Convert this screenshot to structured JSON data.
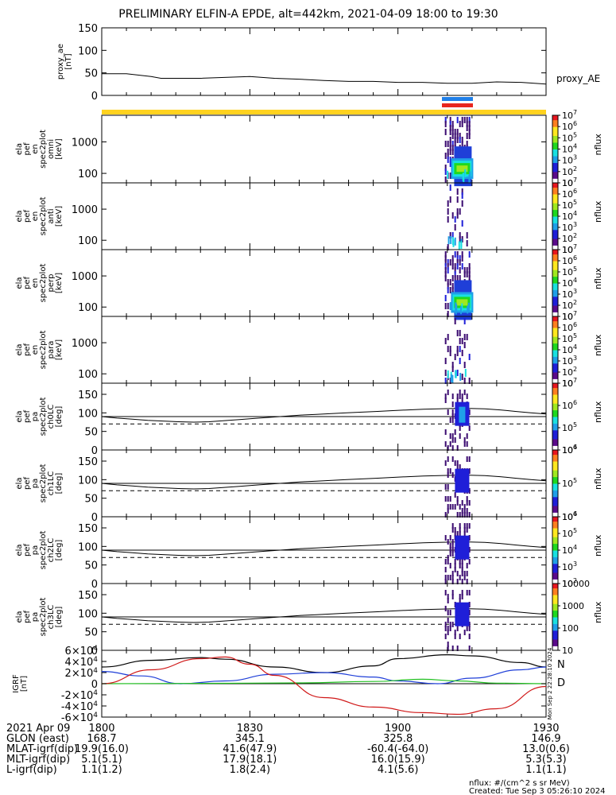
{
  "title": "PRELIMINARY ELFIN-A EPDE, alt=442km, 2021-04-09 18:00 to 19:30",
  "colors": {
    "axis": "#000000",
    "bar_yellow": "#ffd21f",
    "bar_blue": "#1f7fe8",
    "bar_red": "#e8261f",
    "grf_black": "#000000",
    "grf_blue": "#1f3fd8",
    "grf_green": "#22c022",
    "grf_red": "#d01818",
    "colorbar_stops": [
      "#ffffff",
      "#5a0b8a",
      "#1f1fd8",
      "#1f9fe8",
      "#19e0e0",
      "#1fd81f",
      "#a0e81f",
      "#ffe81f",
      "#ff7f1f",
      "#e8161f"
    ]
  },
  "panels": [
    {
      "id": "proxy_ae",
      "ylabel": [
        "proxy_ae",
        "[nT]"
      ],
      "right_label": "proxy_AE"
    },
    {
      "id": "en_omni",
      "ylabel": [
        "ela",
        "pef",
        "en",
        "spec2plot",
        "omni",
        "[keV]"
      ],
      "zlabel": "nflux"
    },
    {
      "id": "en_anti",
      "ylabel": [
        "ela",
        "pef",
        "en",
        "spec2plot",
        "anti",
        "[keV]"
      ],
      "zlabel": "nflux"
    },
    {
      "id": "en_perp",
      "ylabel": [
        "ela",
        "pef",
        "en",
        "spec2plot",
        "perp",
        "[keV]"
      ],
      "zlabel": "nflux"
    },
    {
      "id": "en_para",
      "ylabel": [
        "ela",
        "pef",
        "en",
        "spec2plot",
        "para",
        "[keV]"
      ],
      "zlabel": "nflux"
    },
    {
      "id": "pa_ch0",
      "ylabel": [
        "ela",
        "pef",
        "pa",
        "spec2plot",
        "ch0LC",
        "[deg]"
      ],
      "zlabel": "nflux"
    },
    {
      "id": "pa_ch1",
      "ylabel": [
        "ela",
        "pef",
        "pa",
        "spec2plot",
        "ch1LC",
        "[deg]"
      ],
      "zlabel": "nflux"
    },
    {
      "id": "pa_ch2",
      "ylabel": [
        "ela",
        "pef",
        "pa",
        "spec2plot",
        "ch2LC",
        "[deg]"
      ],
      "zlabel": "nflux"
    },
    {
      "id": "pa_ch3",
      "ylabel": [
        "ela",
        "pef",
        "pa",
        "spec2plot",
        "ch3LC",
        "[deg]"
      ],
      "zlabel": "nflux"
    },
    {
      "id": "grf",
      "ylabel": [
        "IGRF",
        "[nT]"
      ],
      "legend": [
        "N",
        "D"
      ],
      "side_text": "Mon Sep  2 22:28:10 2024"
    }
  ],
  "footer": {
    "rows": [
      {
        "label": "2021 Apr 09",
        "values": [
          "1800",
          "1830",
          "1900",
          "1930"
        ]
      },
      {
        "label": "GLON (east)",
        "values": [
          "168.7",
          "345.1",
          "325.8",
          "146.9"
        ]
      },
      {
        "label": "MLAT-igrf(dip)",
        "values": [
          "19.9(16.0)",
          "41.6(47.9)",
          "-60.4(-64.0)",
          "13.0(0.6)"
        ]
      },
      {
        "label": "MLT-igrf(dip)",
        "values": [
          "5.1(5.1)",
          "17.9(18.1)",
          "16.0(15.9)",
          "5.3(5.3)"
        ]
      },
      {
        "label": "L-igrf(dip)",
        "values": [
          "1.1(1.2)",
          "1.8(2.4)",
          "4.1(5.6)",
          "1.1(1.1)"
        ]
      }
    ],
    "units_note": "nflux: #/(cm^2 s sr MeV)",
    "created_note": "Created: Tue Sep  3 05:26:10 2024"
  },
  "chart_data": [
    {
      "type": "line",
      "panel": "proxy_ae",
      "x_unit": "minutes since 18:00",
      "xlim": [
        0,
        90
      ],
      "ylim": [
        0,
        150
      ],
      "yticks": [
        "0",
        "50",
        "100",
        "150"
      ],
      "series": [
        {
          "name": "proxy_AE",
          "x": [
            0,
            5,
            10,
            12,
            14,
            20,
            30,
            35,
            40,
            45,
            50,
            55,
            60,
            65,
            70,
            75,
            80,
            85,
            90
          ],
          "y": [
            48,
            48,
            42,
            38,
            38,
            38,
            42,
            38,
            36,
            33,
            31,
            31,
            29,
            29,
            27,
            27,
            30,
            29,
            25
          ]
        }
      ]
    },
    {
      "type": "heatmap",
      "panel": "en_omni",
      "ylim_log_keV": [
        50,
        7000
      ],
      "yticks": [
        "100",
        "1000"
      ],
      "zlim": [
        10,
        10000000
      ],
      "colorbar_ticks": [
        "10",
        "10^2",
        "10^3",
        "10^4",
        "10^5",
        "10^6",
        "10^7"
      ],
      "activity_x_range": [
        69.5,
        74.5
      ],
      "peak": {
        "x": 73,
        "y_keV": 200,
        "z": 10000
      }
    },
    {
      "type": "heatmap",
      "panel": "en_anti",
      "ylim_log_keV": [
        50,
        7000
      ],
      "yticks": [
        "100",
        "1000"
      ],
      "zlim": [
        10,
        10000000
      ],
      "colorbar_ticks": [
        "10",
        "10^2",
        "10^3",
        "10^4",
        "10^5",
        "10^6",
        "10^7"
      ],
      "activity_x_range": [
        69.5,
        74.5
      ]
    },
    {
      "type": "heatmap",
      "panel": "en_perp",
      "ylim_log_keV": [
        50,
        7000
      ],
      "yticks": [
        "100",
        "1000"
      ],
      "zlim": [
        10,
        10000000
      ],
      "colorbar_ticks": [
        "10",
        "10^2",
        "10^3",
        "10^4",
        "10^5",
        "10^6",
        "10^7"
      ],
      "activity_x_range": [
        69.5,
        74.5
      ],
      "peak": {
        "x": 73,
        "y_keV": 200,
        "z": 10000
      }
    },
    {
      "type": "heatmap",
      "panel": "en_para",
      "ylim_log_keV": [
        50,
        7000
      ],
      "yticks": [
        "100",
        "1000"
      ],
      "zlim": [
        10,
        10000000
      ],
      "colorbar_ticks": [
        "10",
        "10^2",
        "10^3",
        "10^4",
        "10^5",
        "10^6",
        "10^7"
      ],
      "activity_x_range": [
        69.5,
        74.5
      ]
    },
    {
      "type": "heatmap",
      "panel": "pa_ch0",
      "ylim": [
        0,
        180
      ],
      "yticks": [
        "0",
        "50",
        "100",
        "150"
      ],
      "zlim": [
        1000,
        10000000
      ],
      "colorbar_ticks": [
        "10^4",
        "10^5",
        "10^6",
        "10^7"
      ],
      "activity_x_range": [
        69.5,
        74.5
      ],
      "lc_solid_deg": [
        90,
        86,
        83,
        80,
        78,
        76,
        75,
        76,
        79,
        82,
        85,
        88,
        91,
        94,
        96,
        98,
        100,
        102,
        104,
        106,
        108,
        110,
        111,
        112,
        112,
        111,
        108,
        104,
        100,
        97
      ],
      "lc_dashed_deg": [
        70,
        70,
        70,
        70,
        70,
        70,
        70,
        70,
        70,
        70,
        70,
        70,
        70,
        70,
        70,
        70,
        70,
        70,
        70,
        70,
        70,
        70,
        70,
        70,
        70,
        70,
        70,
        70,
        70,
        70
      ],
      "lc_flat_deg": [
        90,
        90,
        90,
        90,
        90,
        90,
        90,
        90,
        90,
        90,
        90,
        90,
        90,
        90,
        90,
        90,
        90,
        90,
        90,
        90,
        90,
        90,
        90,
        90,
        90,
        90,
        90,
        90,
        90,
        90
      ]
    },
    {
      "type": "heatmap",
      "panel": "pa_ch1",
      "ylim": [
        0,
        180
      ],
      "yticks": [
        "0",
        "50",
        "100",
        "150"
      ],
      "zlim": [
        1000,
        1000000
      ],
      "colorbar_ticks": [
        "10^4",
        "10^5",
        "10^6"
      ],
      "activity_x_range": [
        69.5,
        74.5
      ]
    },
    {
      "type": "heatmap",
      "panel": "pa_ch2",
      "ylim": [
        0,
        180
      ],
      "yticks": [
        "0",
        "50",
        "100",
        "150"
      ],
      "zlim": [
        100,
        1000000
      ],
      "colorbar_ticks": [
        "10^2",
        "10^3",
        "10^4",
        "10^5",
        "10^6"
      ],
      "activity_x_range": [
        69.5,
        74.5
      ]
    },
    {
      "type": "heatmap",
      "panel": "pa_ch3",
      "ylim": [
        0,
        180
      ],
      "yticks": [
        "0",
        "50",
        "100",
        "150"
      ],
      "zlim": [
        10,
        10000
      ],
      "colorbar_ticks": [
        "10",
        "100",
        "1000",
        "10000"
      ],
      "activity_x_range": [
        69.5,
        74.5
      ]
    },
    {
      "type": "line",
      "panel": "grf",
      "x_unit": "minutes since 18:00",
      "xlim": [
        0,
        90
      ],
      "ylim": [
        -60000,
        60000
      ],
      "yticks": [
        "-6×10^4",
        "-4×10^4",
        "-2×10^4",
        "0",
        "2×10^4",
        "4×10^4",
        "6×10^4"
      ],
      "series": [
        {
          "name": "black",
          "x": [
            0,
            10,
            20,
            25,
            35,
            45,
            55,
            60,
            70,
            75,
            85,
            90
          ],
          "y": [
            30000,
            42000,
            47000,
            44000,
            30000,
            20000,
            32000,
            45000,
            52000,
            50000,
            38000,
            30000
          ]
        },
        {
          "name": "blue",
          "x": [
            0,
            8,
            16,
            25,
            35,
            45,
            55,
            60,
            68,
            75,
            85,
            90
          ],
          "y": [
            22000,
            14000,
            0,
            5000,
            17000,
            20000,
            12000,
            5000,
            0,
            10000,
            25000,
            30000
          ]
        },
        {
          "name": "green",
          "x": [
            0,
            20,
            40,
            55,
            65,
            72,
            80,
            90
          ],
          "y": [
            0,
            500,
            1500,
            4000,
            8000,
            5000,
            1000,
            0
          ]
        },
        {
          "name": "red",
          "x": [
            0,
            10,
            20,
            25,
            30,
            35,
            45,
            55,
            65,
            72,
            80,
            90
          ],
          "y": [
            0,
            25000,
            45000,
            48000,
            35000,
            15000,
            -25000,
            -42000,
            -52000,
            -55000,
            -45000,
            -5000
          ]
        }
      ]
    }
  ]
}
